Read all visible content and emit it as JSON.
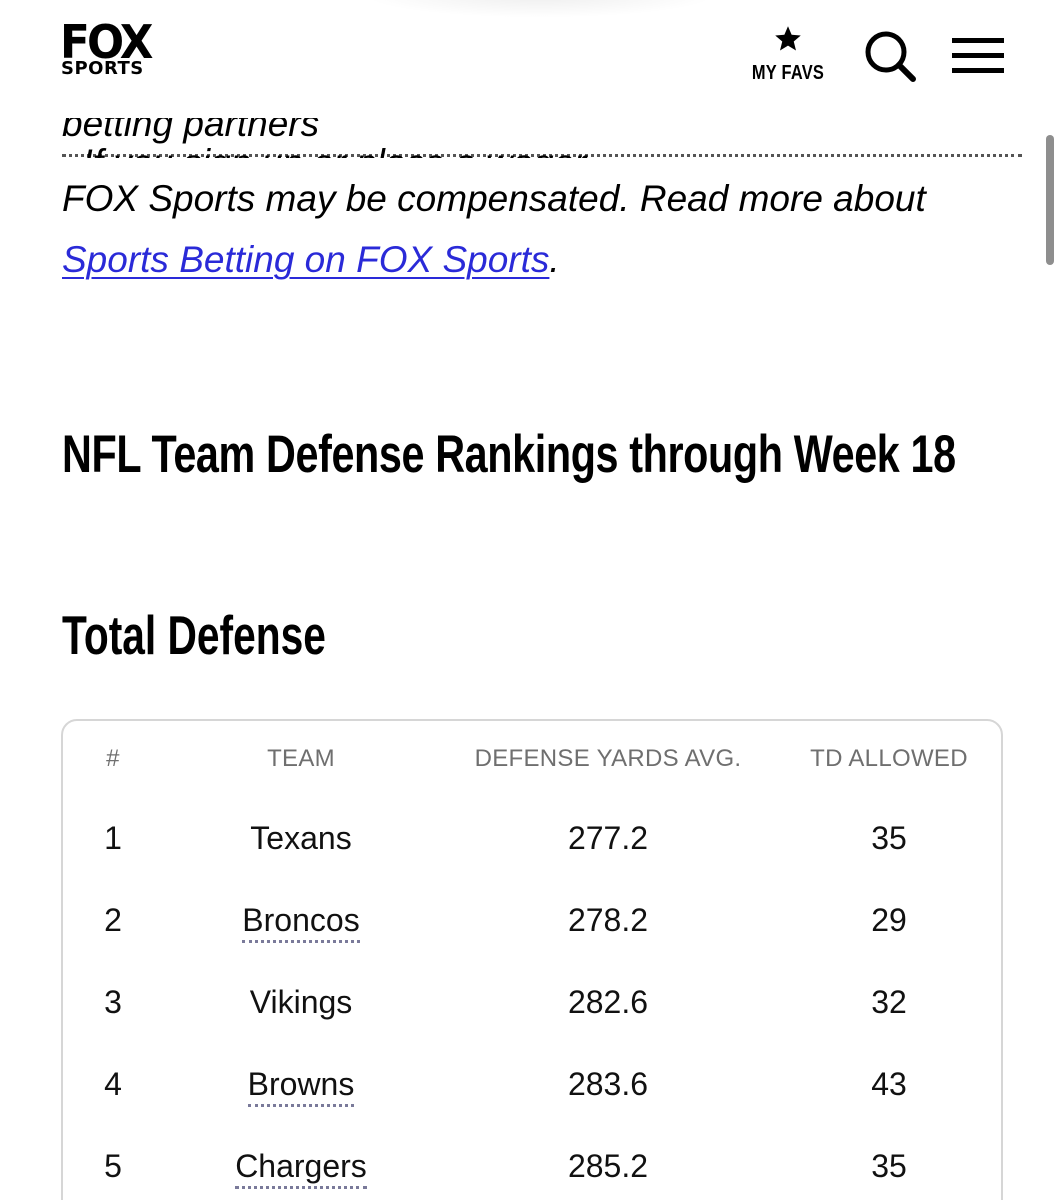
{
  "header": {
    "logo": {
      "fox": "FOX",
      "sports": "SPORTS"
    },
    "favs_label": "MY FAVS",
    "search_icon": "search-icon",
    "menu_icon": "hamburger-menu-icon"
  },
  "disclaimer": {
    "clipped_line_a": "betting partners",
    "clipped_line_b": ". If you sign up or place a wager,",
    "line2": "FOX Sports may be compensated. Read more about",
    "link_text": "Sports Betting on FOX Sports",
    "link_suffix": "."
  },
  "section_title": "NFL Team Defense Rankings through Week 18",
  "subsection_title": "Total Defense",
  "table": {
    "headers": {
      "rank": "#",
      "team": "TEAM",
      "yards": "DEFENSE YARDS AVG.",
      "td": "TD ALLOWED"
    },
    "rows": [
      {
        "rank": "1",
        "team": "Texans",
        "yards": "277.2",
        "td": "35"
      },
      {
        "rank": "2",
        "team": "Broncos",
        "yards": "278.2",
        "td": "29"
      },
      {
        "rank": "3",
        "team": "Vikings",
        "yards": "282.6",
        "td": "32"
      },
      {
        "rank": "4",
        "team": "Browns",
        "yards": "283.6",
        "td": "43"
      },
      {
        "rank": "5",
        "team": "Chargers",
        "yards": "285.2",
        "td": "35"
      }
    ]
  },
  "colors": {
    "link": "#2a2ad8",
    "header_text": "#6f6f6f",
    "border": "#d6d6d6"
  }
}
